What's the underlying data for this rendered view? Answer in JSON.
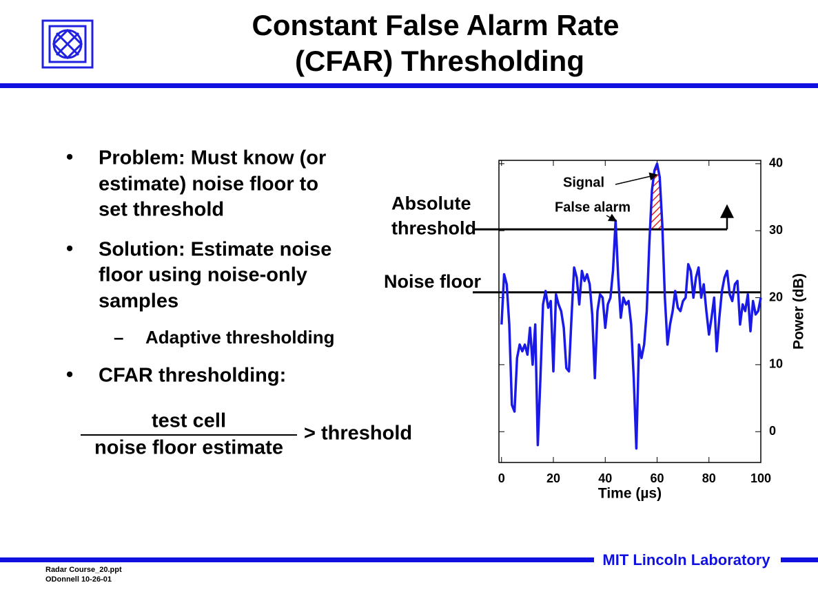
{
  "header": {
    "title": [
      "Constant False Alarm Rate",
      "(CFAR) Thresholding"
    ]
  },
  "bullets": [
    {
      "lines": [
        "Problem: Must know (or",
        "estimate) noise floor to",
        "set threshold"
      ]
    },
    {
      "lines": [
        "Solution: Estimate noise",
        "floor using noise-only",
        "samples"
      ]
    },
    {
      "sub": "Adaptive thresholding"
    },
    {
      "lines": [
        "CFAR thresholding:"
      ]
    }
  ],
  "formula": {
    "numerator": "test cell",
    "denominator": "noise floor estimate",
    "comparison": "> threshold"
  },
  "footer": {
    "lab": "MIT Lincoln Laboratory",
    "file": "Radar Course_20.ppt",
    "author": "ODonnell 10-26-01"
  },
  "chart_data": {
    "type": "line",
    "xlabel": "Time (µs)",
    "ylabel": "Power (dB)",
    "x": [
      0,
      1,
      2,
      3,
      4,
      5,
      6,
      7,
      8,
      9,
      10,
      11,
      12,
      13,
      14,
      15,
      16,
      17,
      18,
      19,
      20,
      21,
      22,
      23,
      24,
      25,
      26,
      27,
      28,
      29,
      30,
      31,
      32,
      33,
      34,
      35,
      36,
      37,
      38,
      39,
      40,
      41,
      42,
      43,
      44,
      45,
      46,
      47,
      48,
      49,
      50,
      51,
      52,
      53,
      54,
      55,
      56,
      57,
      58,
      59,
      60,
      61,
      62,
      63,
      64,
      65,
      66,
      67,
      68,
      69,
      70,
      71,
      72,
      73,
      74,
      75,
      76,
      77,
      78,
      79,
      80,
      81,
      82,
      83,
      84,
      85,
      86,
      87,
      88,
      89,
      90,
      91,
      92,
      93,
      94,
      95,
      96,
      97,
      98,
      99,
      100
    ],
    "series": [
      {
        "color": "#1a1ae6",
        "values": [
          16,
          23.5,
          22,
          16,
          4,
          3,
          11,
          13,
          12,
          13,
          11.5,
          15.5,
          10,
          16,
          -2,
          8,
          19,
          21,
          18.5,
          19.5,
          9,
          20.5,
          19,
          18,
          15.5,
          9.5,
          9,
          17,
          24.5,
          23,
          19,
          24,
          22.5,
          23.5,
          22,
          17.5,
          8,
          18,
          20.5,
          20,
          15.5,
          19,
          20,
          24,
          31.5,
          23,
          17,
          20,
          19,
          19.5,
          16,
          8,
          -2.5,
          13,
          11,
          13,
          18,
          28,
          36,
          39,
          40,
          38,
          31,
          20,
          13,
          16,
          18,
          21,
          18.5,
          18,
          19.5,
          20,
          25,
          24,
          20,
          23,
          24.5,
          20,
          22,
          18,
          14.5,
          17,
          20,
          12,
          17,
          21,
          23,
          24,
          20.5,
          19.5,
          22,
          22.5,
          16,
          19,
          18,
          20.5,
          15,
          19.5,
          17.5,
          18,
          20
        ]
      }
    ],
    "thresholds": [
      {
        "name": "Absolute threshold",
        "value": 30.2
      },
      {
        "name": "Noise floor",
        "value": 20.8
      }
    ],
    "annotations": [
      "Signal",
      "False alarm"
    ],
    "xlim": [
      -1,
      100
    ],
    "ylim": [
      -4.6,
      40.5
    ],
    "xticks": [
      0,
      20,
      40,
      60,
      80,
      100
    ],
    "yticks": [
      0,
      10,
      20,
      30,
      40
    ]
  }
}
